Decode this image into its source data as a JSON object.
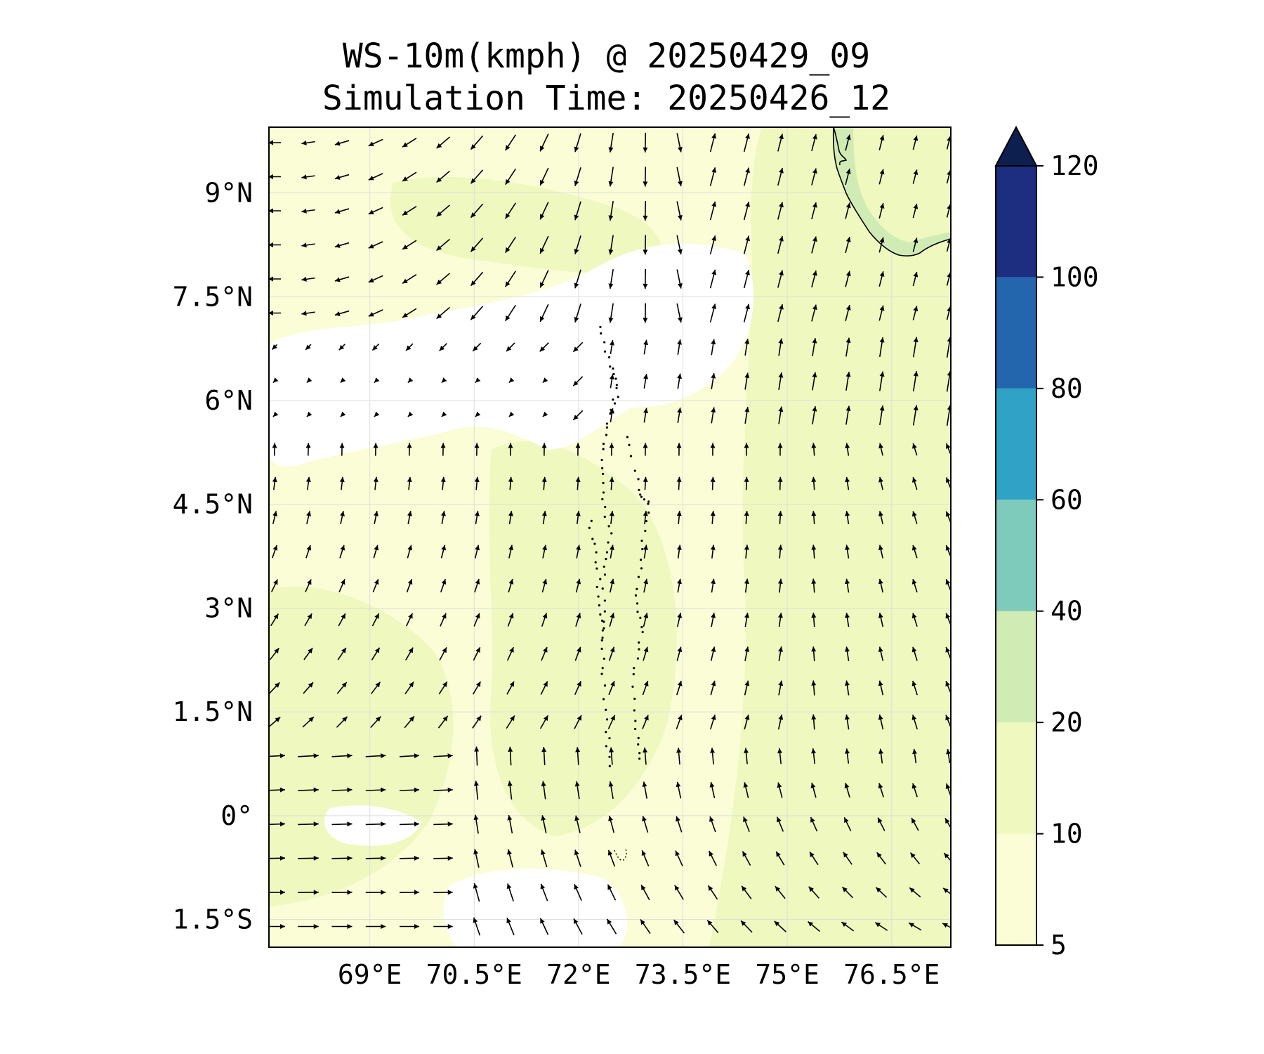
{
  "title": "WS-10m(kmph) @ 20250429_09",
  "subtitle": "Simulation Time: 20250426_12",
  "map": {
    "lon_range": [
      67.55,
      77.35
    ],
    "lat_range": [
      -1.9,
      9.95
    ],
    "x_ticks": [
      {
        "value": 69,
        "label": "69°E"
      },
      {
        "value": 70.5,
        "label": "70.5°E"
      },
      {
        "value": 72,
        "label": "72°E"
      },
      {
        "value": 73.5,
        "label": "73.5°E"
      },
      {
        "value": 75,
        "label": "75°E"
      },
      {
        "value": 76.5,
        "label": "76.5°E"
      }
    ],
    "y_ticks": [
      {
        "value": 9,
        "label": "9°N"
      },
      {
        "value": 7.5,
        "label": "7.5°N"
      },
      {
        "value": 6,
        "label": "6°N"
      },
      {
        "value": 4.5,
        "label": "4.5°N"
      },
      {
        "value": 3,
        "label": "3°N"
      },
      {
        "value": 1.5,
        "label": "1.5°N"
      },
      {
        "value": 0,
        "label": "0°"
      },
      {
        "value": -1.5,
        "label": "1.5°S"
      }
    ],
    "gridlines": true,
    "field_colors": {
      "calm_below_5": "#ffffff",
      "band_5_10": "#fbfdd6",
      "band_10_20": "#eef8bf"
    }
  },
  "colorbar": {
    "levels": [
      "5",
      "10",
      "20",
      "40",
      "60",
      "80",
      "100",
      "120"
    ],
    "colors": [
      "#fbfdd6",
      "#eef8bf",
      "#d0ecb4",
      "#7fcbbb",
      "#2fa2c5",
      "#2466ad",
      "#1d2e81"
    ],
    "extend_max_color": "#0d1f4e",
    "placement": "right"
  }
}
